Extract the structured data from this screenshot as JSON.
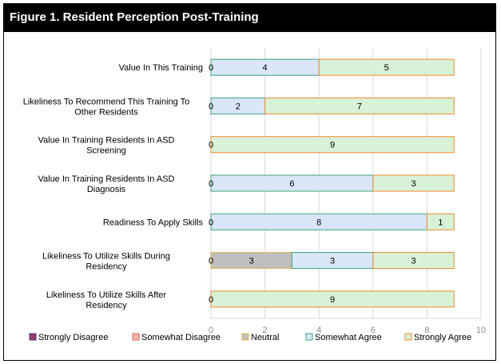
{
  "title": "Figure 1. Resident Perception Post-Training",
  "chart_data": {
    "type": "bar",
    "orientation": "horizontal",
    "stacked": true,
    "title": "Figure 1. Resident Perception Post-Training",
    "xlim": [
      0,
      10
    ],
    "x_ticks": [
      0,
      2,
      4,
      6,
      8,
      10
    ],
    "grid": true,
    "legend_position": "bottom",
    "categories": [
      "Value In This Training",
      "Likeliness To Recommend This Training To Other Residents",
      "Value In Training Residents In ASD Screening",
      "Value In Training Residents In ASD Diagnosis",
      "Readiness To Apply Skills",
      "Likeliness To Utilize Skills During Residency",
      "Likeliness To Utilize Skills After Residency"
    ],
    "series": [
      {
        "name": "Strongly Disagree",
        "values": [
          0,
          0,
          0,
          0,
          0,
          0,
          0
        ],
        "color": "#9b3a6a",
        "border": "#4a3a8a"
      },
      {
        "name": "Somewhat Disagree",
        "values": [
          0,
          0,
          0,
          0,
          0,
          0,
          0
        ],
        "color": "#f4b6a6",
        "border": "#e0665a"
      },
      {
        "name": "Neutral",
        "values": [
          0,
          0,
          0,
          0,
          0,
          3,
          0
        ],
        "color": "#bfbfbf",
        "border": "#e6b24a"
      },
      {
        "name": "Somewhat Agree",
        "values": [
          4,
          2,
          0,
          6,
          8,
          3,
          0
        ],
        "color": "#dae6f8",
        "border": "#3aa57a"
      },
      {
        "name": "Strongly Agree",
        "values": [
          5,
          7,
          9,
          3,
          1,
          3,
          9
        ],
        "color": "#d8f2d8",
        "border": "#f08a2a"
      }
    ]
  }
}
